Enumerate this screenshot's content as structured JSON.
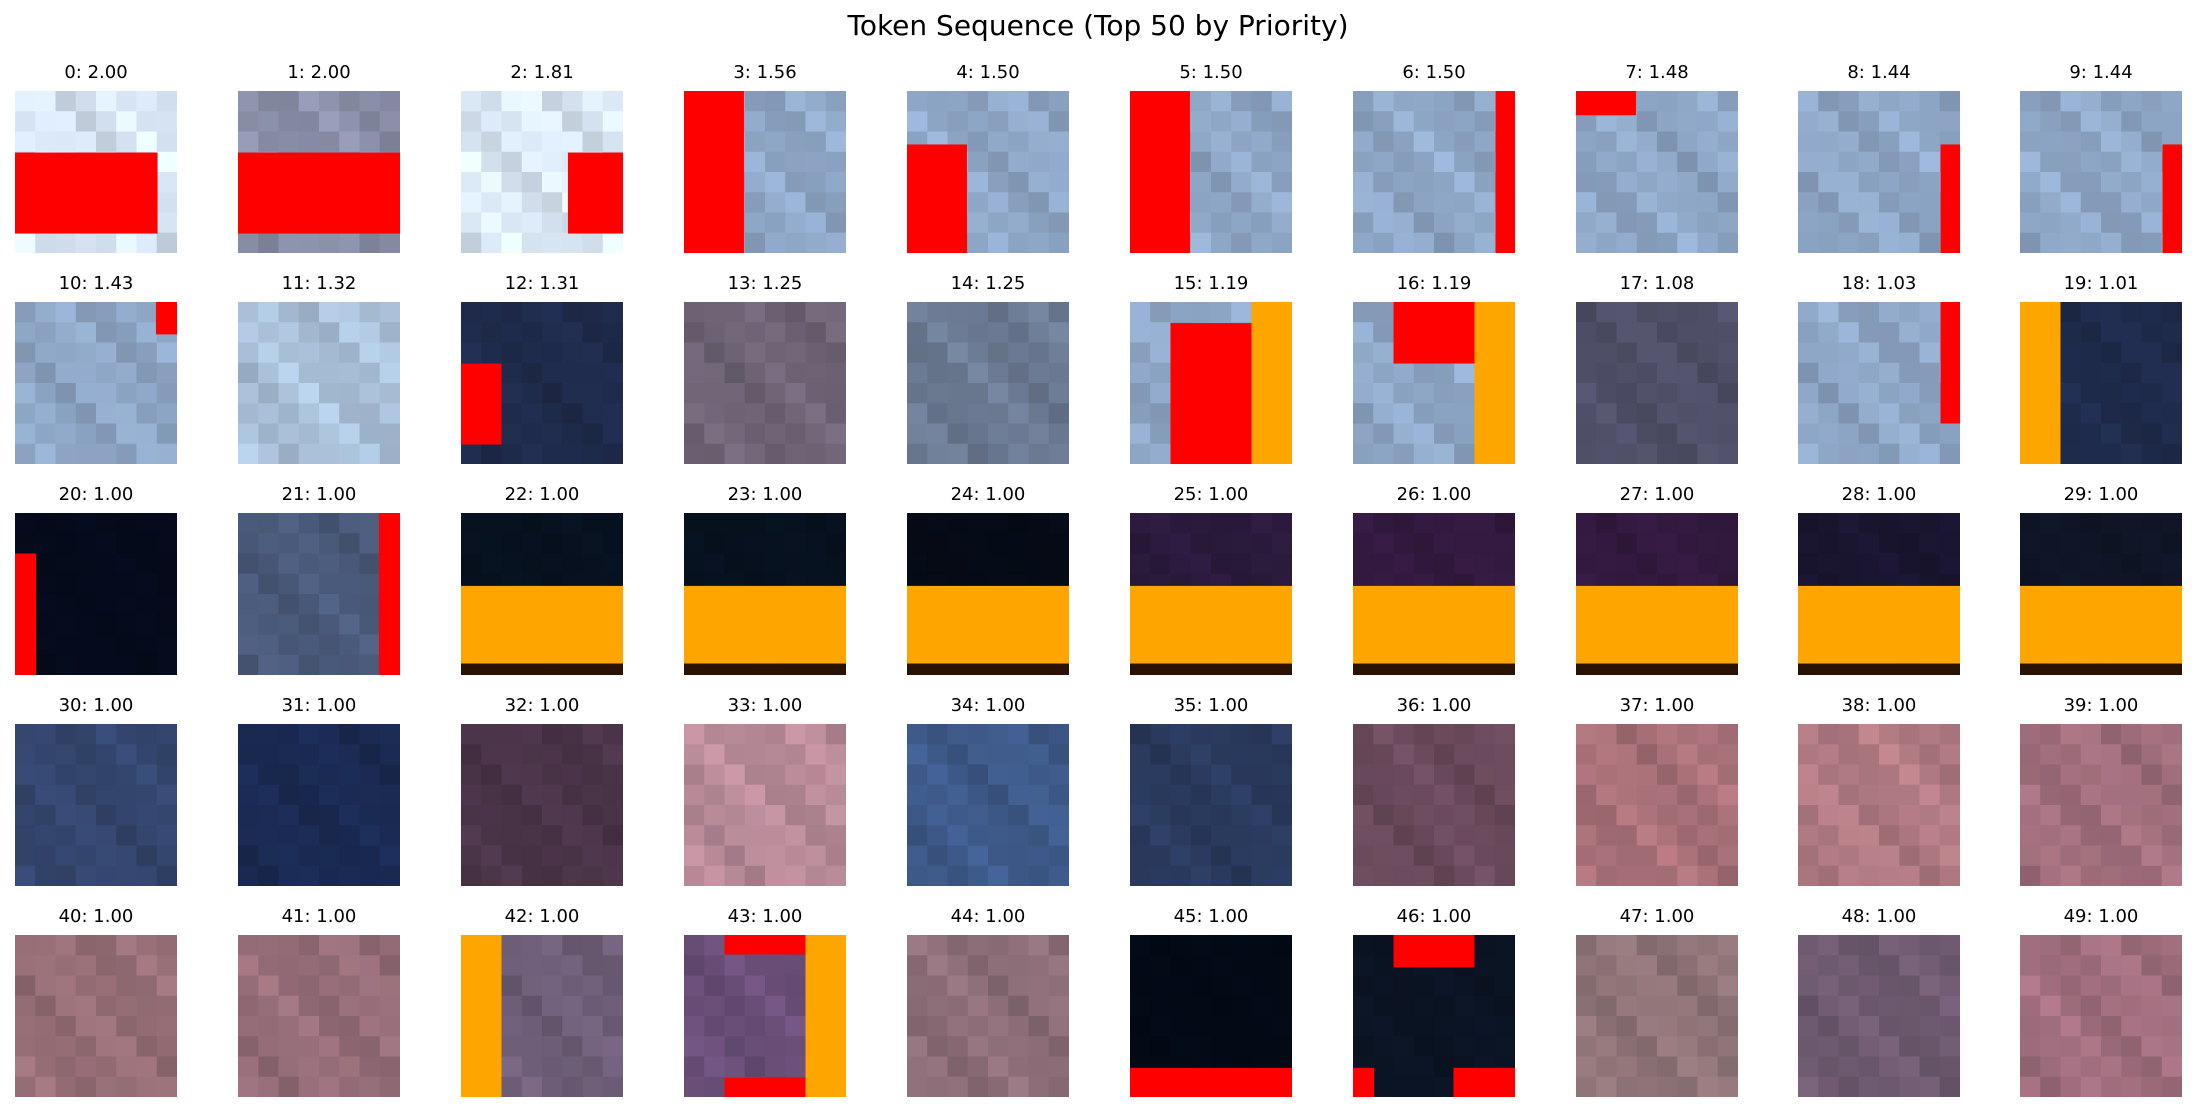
{
  "chart_data": {
    "type": "image_grid",
    "title": "Token Sequence (Top 50 by Priority)",
    "rows": 5,
    "cols": 10,
    "tokens": [
      {
        "index": 0,
        "priority": "2.00",
        "base": "#d7e4f4",
        "overlays": [
          {
            "color": "#ff0000",
            "rect": [
              0,
              0.38,
              0.88,
              0.5
            ]
          }
        ]
      },
      {
        "index": 1,
        "priority": "2.00",
        "base": "#8a8fa8",
        "overlays": [
          {
            "color": "#ff0000",
            "rect": [
              0,
              0.38,
              1,
              0.5
            ]
          }
        ]
      },
      {
        "index": 2,
        "priority": "1.81",
        "base": "#dbe8f6",
        "overlays": [
          {
            "color": "#ff0000",
            "rect": [
              0.66,
              0.38,
              0.34,
              0.5
            ]
          }
        ]
      },
      {
        "index": 3,
        "priority": "1.56",
        "base": "#8ea6c6",
        "overlays": [
          {
            "color": "#ff0000",
            "rect": [
              0,
              0,
              0.37,
              1
            ]
          }
        ]
      },
      {
        "index": 4,
        "priority": "1.50",
        "base": "#8ea6c6",
        "overlays": [
          {
            "color": "#ff0000",
            "rect": [
              0,
              0.33,
              0.37,
              0.67
            ]
          }
        ]
      },
      {
        "index": 5,
        "priority": "1.50",
        "base": "#8ea6c6",
        "overlays": [
          {
            "color": "#ff0000",
            "rect": [
              0,
              0,
              0.37,
              1
            ]
          }
        ]
      },
      {
        "index": 6,
        "priority": "1.50",
        "base": "#8ea6c6",
        "overlays": [
          {
            "color": "#ff0000",
            "rect": [
              0.88,
              0,
              0.12,
              1
            ]
          }
        ]
      },
      {
        "index": 7,
        "priority": "1.48",
        "base": "#8ea6c6",
        "overlays": [
          {
            "color": "#ff0000",
            "rect": [
              0,
              0,
              0.37,
              0.15
            ]
          }
        ]
      },
      {
        "index": 8,
        "priority": "1.44",
        "base": "#8ea6c6",
        "overlays": [
          {
            "color": "#ff0000",
            "rect": [
              0.88,
              0.33,
              0.12,
              0.67
            ]
          }
        ]
      },
      {
        "index": 9,
        "priority": "1.44",
        "base": "#8ea6c6",
        "overlays": [
          {
            "color": "#ff0000",
            "rect": [
              0.88,
              0.33,
              0.12,
              0.67
            ]
          }
        ]
      },
      {
        "index": 10,
        "priority": "1.43",
        "base": "#8ea6c6",
        "overlays": [
          {
            "color": "#ff0000",
            "rect": [
              0.87,
              0,
              0.13,
              0.2
            ]
          }
        ]
      },
      {
        "index": 11,
        "priority": "1.32",
        "base": "#a9c0d8",
        "overlays": []
      },
      {
        "index": 12,
        "priority": "1.31",
        "base": "#1f2b4c",
        "overlays": [
          {
            "color": "#ff0000",
            "rect": [
              0,
              0.38,
              0.25,
              0.5
            ]
          }
        ]
      },
      {
        "index": 13,
        "priority": "1.25",
        "base": "#6f6476",
        "overlays": []
      },
      {
        "index": 14,
        "priority": "1.25",
        "base": "#6b7a92",
        "overlays": []
      },
      {
        "index": 15,
        "priority": "1.19",
        "base": "#8ea6c6",
        "overlays": [
          {
            "color": "#ff0000",
            "rect": [
              0.25,
              0.13,
              0.5,
              0.87
            ]
          },
          {
            "color": "#ffa500",
            "rect": [
              0.75,
              0,
              0.25,
              1
            ]
          }
        ]
      },
      {
        "index": 16,
        "priority": "1.19",
        "base": "#8ea6c6",
        "overlays": [
          {
            "color": "#ff0000",
            "rect": [
              0.25,
              0,
              0.5,
              0.38
            ]
          },
          {
            "color": "#ffa500",
            "rect": [
              0.75,
              0,
              0.25,
              1
            ]
          }
        ]
      },
      {
        "index": 17,
        "priority": "1.08",
        "base": "#4f4f68",
        "overlays": []
      },
      {
        "index": 18,
        "priority": "1.03",
        "base": "#8ea6c6",
        "overlays": [
          {
            "color": "#ff0000",
            "rect": [
              0.88,
              0,
              0.12,
              0.75
            ]
          }
        ]
      },
      {
        "index": 19,
        "priority": "1.01",
        "base": "#1f2b4c",
        "overlays": [
          {
            "color": "#ffa500",
            "rect": [
              0,
              0,
              0.25,
              1
            ]
          }
        ]
      },
      {
        "index": 20,
        "priority": "1.00",
        "base": "#050b1c",
        "overlays": [
          {
            "color": "#ff0000",
            "rect": [
              0,
              0.25,
              0.13,
              0.75
            ]
          }
        ]
      },
      {
        "index": 21,
        "priority": "1.00",
        "base": "#4a5a7a",
        "overlays": [
          {
            "color": "#ff0000",
            "rect": [
              0.87,
              0,
              0.13,
              1
            ]
          }
        ]
      },
      {
        "index": 22,
        "priority": "1.00",
        "base": "#07111f",
        "overlays": [
          {
            "color": "#ffa500",
            "rect": [
              0,
              0.45,
              1,
              0.48
            ]
          },
          {
            "color": "#2a1205",
            "rect": [
              0,
              0.93,
              1,
              0.07
            ]
          }
        ]
      },
      {
        "index": 23,
        "priority": "1.00",
        "base": "#07111f",
        "overlays": [
          {
            "color": "#ffa500",
            "rect": [
              0,
              0.45,
              1,
              0.48
            ]
          },
          {
            "color": "#2a1205",
            "rect": [
              0,
              0.93,
              1,
              0.07
            ]
          }
        ]
      },
      {
        "index": 24,
        "priority": "1.00",
        "base": "#050b16",
        "overlays": [
          {
            "color": "#ffa500",
            "rect": [
              0,
              0.45,
              1,
              0.48
            ]
          },
          {
            "color": "#2a1205",
            "rect": [
              0,
              0.93,
              1,
              0.07
            ]
          }
        ]
      },
      {
        "index": 25,
        "priority": "1.00",
        "base": "#2a1a3c",
        "overlays": [
          {
            "color": "#ffa500",
            "rect": [
              0,
              0.45,
              1,
              0.48
            ]
          },
          {
            "color": "#2a1205",
            "rect": [
              0,
              0.93,
              1,
              0.07
            ]
          }
        ]
      },
      {
        "index": 26,
        "priority": "1.00",
        "base": "#33193f",
        "overlays": [
          {
            "color": "#ffa500",
            "rect": [
              0,
              0.45,
              1,
              0.48
            ]
          },
          {
            "color": "#2a1205",
            "rect": [
              0,
              0.93,
              1,
              0.07
            ]
          }
        ]
      },
      {
        "index": 27,
        "priority": "1.00",
        "base": "#33193f",
        "overlays": [
          {
            "color": "#ffa500",
            "rect": [
              0,
              0.45,
              1,
              0.48
            ]
          },
          {
            "color": "#2a1205",
            "rect": [
              0,
              0.93,
              1,
              0.07
            ]
          }
        ]
      },
      {
        "index": 28,
        "priority": "1.00",
        "base": "#1a1530",
        "overlays": [
          {
            "color": "#ffa500",
            "rect": [
              0,
              0.45,
              1,
              0.48
            ]
          },
          {
            "color": "#2a1205",
            "rect": [
              0,
              0.93,
              1,
              0.07
            ]
          }
        ]
      },
      {
        "index": 29,
        "priority": "1.00",
        "base": "#0f1526",
        "overlays": [
          {
            "color": "#ffa500",
            "rect": [
              0,
              0.45,
              1,
              0.48
            ]
          },
          {
            "color": "#2a1205",
            "rect": [
              0,
              0.93,
              1,
              0.07
            ]
          }
        ]
      },
      {
        "index": 30,
        "priority": "1.00",
        "base": "#34466e",
        "overlays": []
      },
      {
        "index": 31,
        "priority": "1.00",
        "base": "#1a2a52",
        "overlays": []
      },
      {
        "index": 32,
        "priority": "1.00",
        "base": "#4a3448",
        "overlays": []
      },
      {
        "index": 33,
        "priority": "1.00",
        "base": "#b88a98",
        "overlays": []
      },
      {
        "index": 34,
        "priority": "1.00",
        "base": "#3e5a8a",
        "overlays": []
      },
      {
        "index": 35,
        "priority": "1.00",
        "base": "#2a3a5e",
        "overlays": []
      },
      {
        "index": 36,
        "priority": "1.00",
        "base": "#6a4a5c",
        "overlays": []
      },
      {
        "index": 37,
        "priority": "1.00",
        "base": "#a87078",
        "overlays": []
      },
      {
        "index": 38,
        "priority": "1.00",
        "base": "#b07a82",
        "overlays": []
      },
      {
        "index": 39,
        "priority": "1.00",
        "base": "#a06e7c",
        "overlays": []
      },
      {
        "index": 40,
        "priority": "1.00",
        "base": "#966e76",
        "overlays": []
      },
      {
        "index": 41,
        "priority": "1.00",
        "base": "#956d78",
        "overlays": []
      },
      {
        "index": 42,
        "priority": "1.00",
        "base": "#6e5e78",
        "overlays": [
          {
            "color": "#ffa500",
            "rect": [
              0,
              0,
              0.25,
              1
            ]
          }
        ]
      },
      {
        "index": 43,
        "priority": "1.00",
        "base": "#6a4e78",
        "overlays": [
          {
            "color": "#ff0000",
            "rect": [
              0.25,
              0,
              0.5,
              0.12
            ]
          },
          {
            "color": "#ff0000",
            "rect": [
              0.25,
              0.88,
              0.5,
              0.12
            ]
          },
          {
            "color": "#ffa500",
            "rect": [
              0.75,
              0,
              0.25,
              1
            ]
          }
        ]
      },
      {
        "index": 44,
        "priority": "1.00",
        "base": "#8c6e78",
        "overlays": []
      },
      {
        "index": 45,
        "priority": "1.00",
        "base": "#030a16",
        "overlays": [
          {
            "color": "#ff0000",
            "rect": [
              0,
              0.82,
              1,
              0.18
            ]
          }
        ]
      },
      {
        "index": 46,
        "priority": "1.00",
        "base": "#0b1424",
        "overlays": [
          {
            "color": "#ff0000",
            "rect": [
              0.25,
              0,
              0.5,
              0.2
            ]
          },
          {
            "color": "#ff0000",
            "rect": [
              0,
              0.82,
              0.13,
              0.18
            ]
          },
          {
            "color": "#ff0000",
            "rect": [
              0.62,
              0.82,
              0.38,
              0.18
            ]
          }
        ]
      },
      {
        "index": 47,
        "priority": "1.00",
        "base": "#8f7478",
        "overlays": []
      },
      {
        "index": 48,
        "priority": "1.00",
        "base": "#6e5a70",
        "overlays": []
      },
      {
        "index": 49,
        "priority": "1.00",
        "base": "#a06e7e",
        "overlays": []
      }
    ]
  }
}
